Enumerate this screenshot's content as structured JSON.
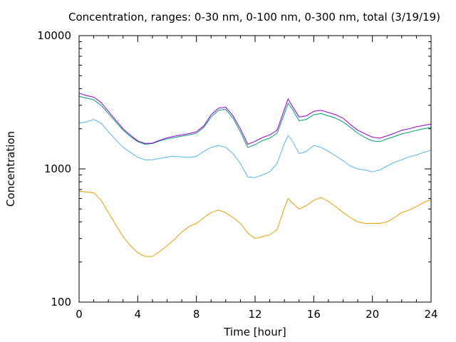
{
  "chart_data": {
    "type": "line",
    "title": "Concentration, ranges: 0-30 nm, 0-100 nm, 0-300 nm, total (3/19/19)",
    "xlabel": "Time [hour]",
    "ylabel": "Concentration",
    "xlim": [
      0,
      24
    ],
    "ylim": [
      100,
      10000
    ],
    "yscale": "log",
    "grid": false,
    "x_ticks": [
      0,
      4,
      8,
      12,
      16,
      20,
      24
    ],
    "x_tick_labels": [
      "0",
      "4",
      "8",
      "12",
      "16",
      "20",
      "24"
    ],
    "y_ticks": [
      100,
      1000,
      10000
    ],
    "y_tick_labels": [
      "100",
      "1000",
      "10000"
    ],
    "x": [
      0,
      0.5,
      1,
      1.5,
      2,
      2.5,
      3,
      3.5,
      4,
      4.5,
      5,
      5.5,
      6,
      6.5,
      7,
      7.5,
      8,
      8.5,
      9,
      9.5,
      10,
      10.5,
      11,
      11.5,
      12,
      12.5,
      13,
      13.5,
      14,
      14.25,
      14.5,
      15,
      15.5,
      16,
      16.5,
      17,
      17.5,
      18,
      18.5,
      19,
      19.5,
      20,
      20.5,
      21,
      21.5,
      22,
      22.5,
      23,
      23.5,
      24
    ],
    "series": [
      {
        "color": "#e69f00",
        "values": [
          680,
          670,
          660,
          580,
          470,
          380,
          310,
          265,
          235,
          220,
          220,
          240,
          265,
          295,
          335,
          370,
          390,
          430,
          470,
          490,
          470,
          430,
          390,
          330,
          300,
          310,
          320,
          350,
          510,
          600,
          560,
          500,
          530,
          580,
          610,
          570,
          520,
          470,
          430,
          400,
          390,
          390,
          390,
          400,
          430,
          470,
          490,
          520,
          560,
          590
        ]
      },
      {
        "color": "#56b4e9",
        "values": [
          2200,
          2250,
          2350,
          2200,
          1900,
          1650,
          1450,
          1330,
          1220,
          1170,
          1170,
          1200,
          1230,
          1240,
          1230,
          1220,
          1240,
          1350,
          1450,
          1500,
          1450,
          1300,
          1100,
          870,
          860,
          900,
          950,
          1100,
          1550,
          1780,
          1650,
          1300,
          1350,
          1500,
          1450,
          1350,
          1250,
          1150,
          1050,
          1000,
          980,
          950,
          980,
          1050,
          1120,
          1170,
          1230,
          1270,
          1330,
          1380
        ]
      },
      {
        "color": "#009e73",
        "values": [
          3500,
          3400,
          3300,
          3000,
          2600,
          2250,
          1950,
          1750,
          1600,
          1530,
          1550,
          1620,
          1680,
          1720,
          1760,
          1800,
          1850,
          2050,
          2450,
          2750,
          2800,
          2400,
          1900,
          1450,
          1520,
          1630,
          1700,
          1850,
          2600,
          3100,
          2850,
          2300,
          2350,
          2550,
          2600,
          2500,
          2400,
          2250,
          2050,
          1850,
          1720,
          1620,
          1600,
          1680,
          1750,
          1830,
          1880,
          1950,
          2000,
          2050
        ]
      },
      {
        "color": "#9400d3",
        "values": [
          3700,
          3550,
          3450,
          3150,
          2700,
          2320,
          2000,
          1790,
          1620,
          1550,
          1560,
          1640,
          1710,
          1760,
          1800,
          1840,
          1900,
          2100,
          2550,
          2850,
          2900,
          2500,
          2000,
          1530,
          1610,
          1720,
          1800,
          1950,
          2800,
          3350,
          3000,
          2450,
          2500,
          2700,
          2750,
          2650,
          2550,
          2400,
          2150,
          1950,
          1830,
          1730,
          1700,
          1770,
          1850,
          1950,
          2000,
          2070,
          2120,
          2170
        ]
      }
    ]
  }
}
